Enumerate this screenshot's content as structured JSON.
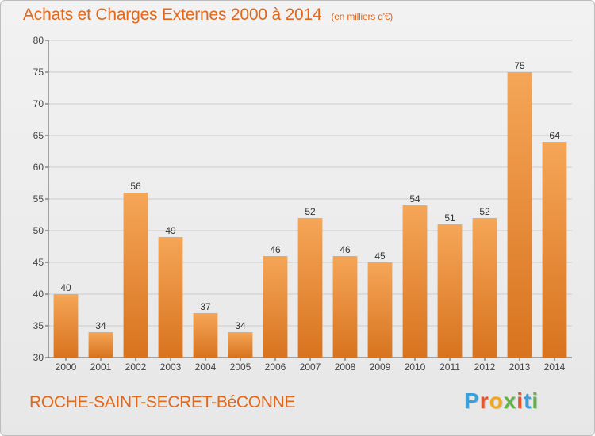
{
  "header": {
    "title": "Achats et Charges Externes 2000 à 2014",
    "unit": "(en milliers d'€)"
  },
  "footer": {
    "commune": "ROCHE-SAINT-SECRET-BéCONNE",
    "logo_letters": [
      "P",
      "r",
      "o",
      "x",
      "i",
      "t",
      "i"
    ],
    "logo_colors": [
      "#3aa0dd",
      "#e8532a",
      "#f2a81d",
      "#63b244",
      "#e8532a",
      "#3aa0dd",
      "#63b244"
    ]
  },
  "colors": {
    "bar_top": "#f5a657",
    "bar_bottom": "#d8731f",
    "title": "#e2671a",
    "grid": "#cccccc",
    "axis": "#555555"
  },
  "chart_data": {
    "type": "bar",
    "title": "Achats et Charges Externes 2000 à 2014",
    "subtitle": "(en milliers d'€)",
    "xlabel": "",
    "ylabel": "",
    "categories": [
      "2000",
      "2001",
      "2002",
      "2003",
      "2004",
      "2005",
      "2006",
      "2007",
      "2008",
      "2009",
      "2010",
      "2011",
      "2012",
      "2013",
      "2014"
    ],
    "values": [
      40,
      34,
      56,
      49,
      37,
      34,
      46,
      52,
      46,
      45,
      54,
      51,
      52,
      75,
      64
    ],
    "ylim": [
      30,
      80
    ],
    "yticks": [
      30,
      35,
      40,
      45,
      50,
      55,
      60,
      65,
      70,
      75,
      80
    ],
    "grid": true,
    "data_labels": true
  }
}
